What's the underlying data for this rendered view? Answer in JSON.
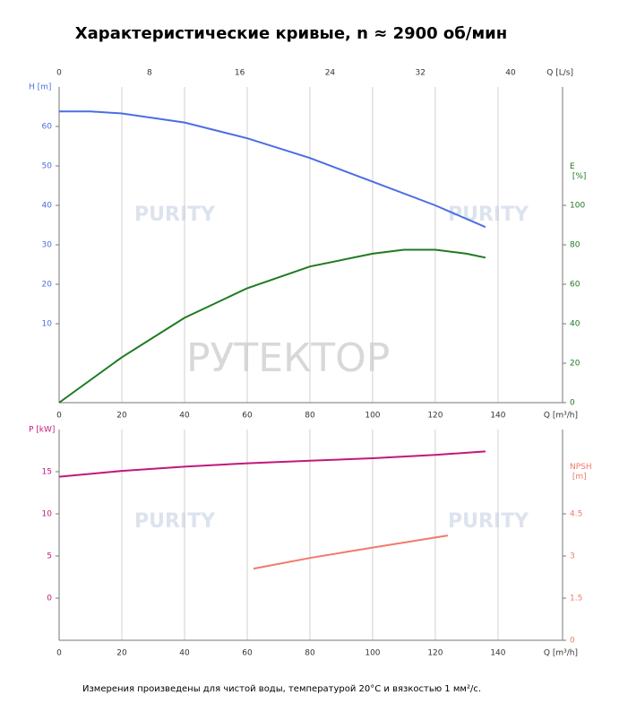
{
  "title": "Характеристические кривые, n ≈ 2900 об/мин",
  "note": "Измерения произведены для чистой воды, температурой 20°C и вязкостью 1 мм²/с.",
  "watermarks": [
    "РУТЕКТОР",
    "PURITY"
  ],
  "chart_data": [
    {
      "type": "line",
      "grid": true,
      "xlabel": "Q [m³/h]",
      "xlim": [
        0,
        160.6
      ],
      "xticks": [
        0,
        20,
        40,
        60,
        80,
        100,
        120,
        140
      ],
      "x2label": "Q [L/s]",
      "x2lim": [
        0,
        44.6
      ],
      "x2ticks": [
        0,
        8,
        16,
        24,
        32,
        40
      ],
      "ylabel": "H [m]",
      "ylim": [
        -10,
        70
      ],
      "yticks": [
        10,
        20,
        30,
        40,
        50,
        60
      ],
      "y2label": "E [%]",
      "y2lim": [
        0,
        160
      ],
      "y2ticks": [
        0,
        20,
        40,
        60,
        80,
        100
      ],
      "series": [
        {
          "color": "#4a6fe3",
          "x": [
            0,
            10,
            20,
            40,
            60,
            80,
            100,
            120,
            136
          ],
          "values": [
            63.8,
            63.8,
            63.3,
            61,
            57,
            52,
            46,
            40,
            34.5
          ]
        },
        {
          "color": "#1f7a1f",
          "axis": "y2",
          "x": [
            0,
            20,
            40,
            60,
            80,
            100,
            110,
            120,
            130,
            136
          ],
          "values": [
            0,
            23,
            43,
            58,
            69,
            75.5,
            77.5,
            77.5,
            75.5,
            73.5
          ]
        }
      ]
    },
    {
      "type": "line",
      "grid": true,
      "xlabel": "Q [m³/h]",
      "xlim": [
        0,
        160.6
      ],
      "xticks": [
        0,
        20,
        40,
        60,
        80,
        100,
        120,
        140
      ],
      "ylabel": "P [kW]",
      "ylim": [
        -5,
        20
      ],
      "yticks": [
        0,
        5,
        10,
        15
      ],
      "y2label": "NPSH [m]",
      "y2lim": [
        0,
        7.5
      ],
      "y2ticks": [
        0,
        1.5,
        3,
        4.5
      ],
      "series": [
        {
          "color": "#c2187c",
          "x": [
            0,
            20,
            40,
            60,
            80,
            100,
            120,
            136
          ],
          "values": [
            14.4,
            15.1,
            15.6,
            16,
            16.3,
            16.6,
            17,
            17.4
          ]
        },
        {
          "color": "#f07a6c",
          "axis": "y2",
          "x": [
            62,
            80,
            100,
            124
          ],
          "values": [
            2.55,
            2.93,
            3.3,
            3.73
          ]
        }
      ]
    }
  ]
}
